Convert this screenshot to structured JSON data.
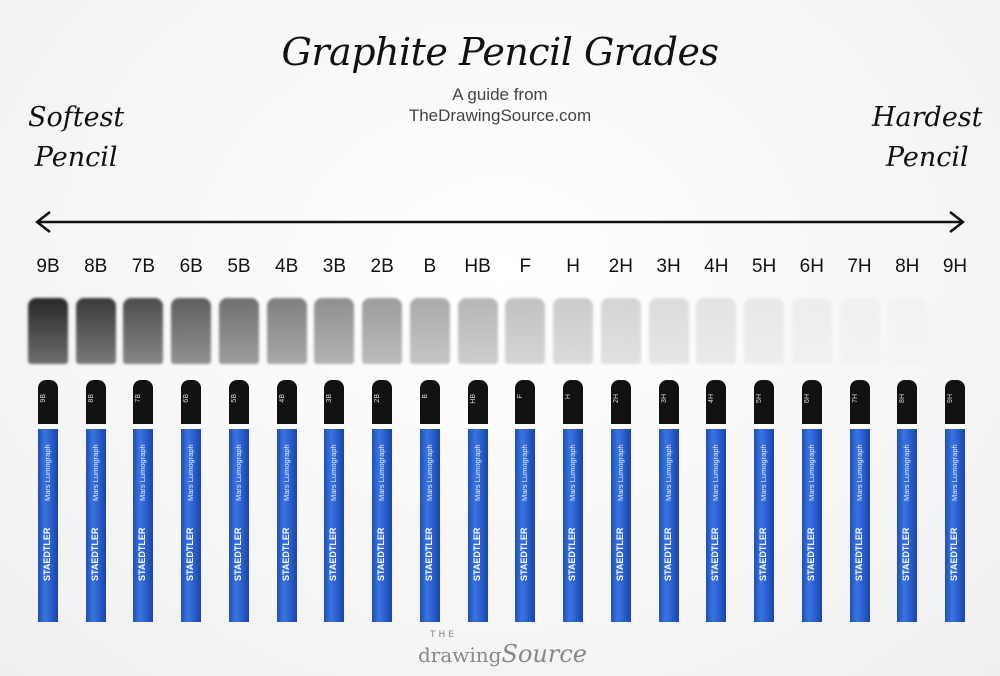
{
  "title": "Graphite Pencil Grades",
  "subtitle_line1": "A guide from",
  "subtitle_line2": "TheDrawingSource.com",
  "left_label": {
    "line1": "Softest",
    "line2": "Pencil"
  },
  "right_label": {
    "line1": "Hardest",
    "line2": "Pencil"
  },
  "grades": [
    "9B",
    "8B",
    "7B",
    "6B",
    "5B",
    "4B",
    "3B",
    "2B",
    "B",
    "HB",
    "F",
    "H",
    "2H",
    "3H",
    "4H",
    "5H",
    "6H",
    "7H",
    "8H",
    "9H"
  ],
  "pencil_brand": "STAEDTLER",
  "pencil_model": "Mars Lumograph",
  "colors": {
    "pencil_blue": "#2c63d2",
    "cap_black": "#111111"
  },
  "logo": {
    "the": "THE",
    "drawing": "drawing",
    "source": "Source"
  }
}
